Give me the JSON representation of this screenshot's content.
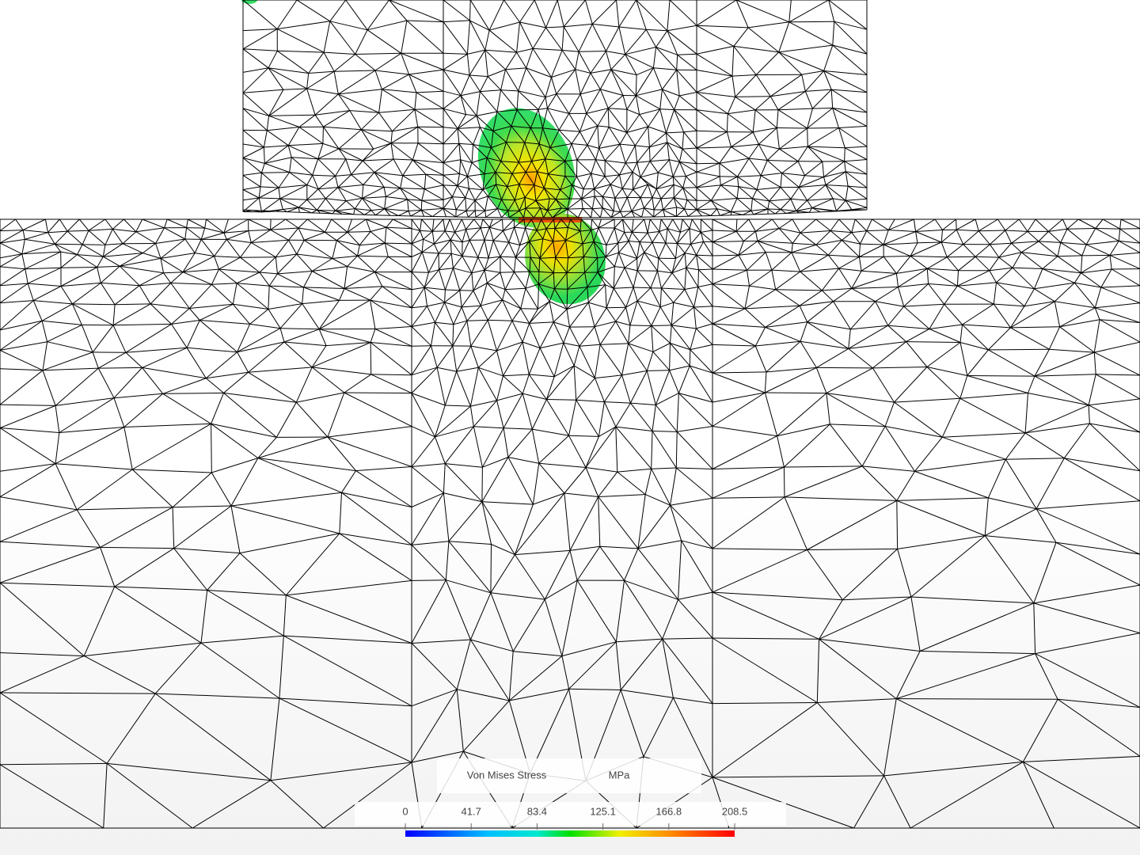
{
  "legend": {
    "title": "Von Mises Stress",
    "unit": "MPa",
    "range": [
      0,
      208.5
    ],
    "ticks": [
      0,
      41.7,
      83.4,
      125.1,
      166.8,
      208.5
    ]
  }
}
